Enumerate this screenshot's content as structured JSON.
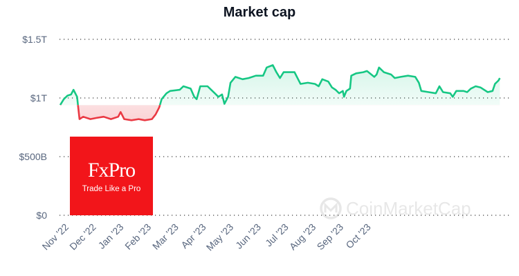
{
  "chart_data": {
    "type": "area",
    "title": "Market cap",
    "xlabel": "",
    "ylabel": "",
    "ylim": [
      0,
      1.5
    ],
    "y_unit": "trillion USD",
    "yticks": [
      {
        "value": 0,
        "label": "$0"
      },
      {
        "value": 0.5,
        "label": "$500B"
      },
      {
        "value": 1,
        "label": "$1T"
      },
      {
        "value": 1.5,
        "label": "$1.5T"
      }
    ],
    "xlim_days": [
      0,
      365
    ],
    "xtick_labels": [
      "Nov '22",
      "Dec '22",
      "Jan '23",
      "Feb '23",
      "Mar '23",
      "Apr '23",
      "May '23",
      "Jun '23",
      "Jul '23",
      "Aug '23",
      "Sep '23",
      "Oct '23"
    ],
    "grid": "horizontal dotted",
    "baseline": 0.94,
    "colors": {
      "above": "#16c784",
      "below": "#ea3943"
    },
    "series": [
      {
        "name": "Market cap",
        "x": [
          0,
          3,
          6,
          9,
          11,
          14,
          15,
          16,
          19,
          25,
          30,
          36,
          42,
          48,
          50,
          53,
          59,
          65,
          70,
          76,
          79,
          82,
          84,
          88,
          91,
          99,
          102,
          108,
          111,
          113,
          116,
          122,
          128,
          131,
          134,
          136,
          139,
          141,
          145,
          151,
          156,
          162,
          168,
          171,
          176,
          179,
          182,
          185,
          194,
          197,
          199,
          205,
          211,
          214,
          217,
          222,
          225,
          228,
          231,
          234,
          235,
          237,
          240,
          241,
          245,
          251,
          254,
          260,
          262,
          264,
          268,
          274,
          277,
          282,
          288,
          294,
          297,
          299,
          305,
          311,
          314,
          317,
          323,
          325,
          328,
          334,
          337,
          340,
          344,
          348,
          354,
          358,
          360,
          363,
          364
        ],
        "values": [
          0.94,
          0.99,
          1.02,
          1.03,
          1.07,
          1.01,
          0.91,
          0.82,
          0.84,
          0.82,
          0.83,
          0.84,
          0.82,
          0.84,
          0.88,
          0.82,
          0.81,
          0.82,
          0.81,
          0.82,
          0.86,
          0.92,
          0.99,
          1.04,
          1.06,
          1.07,
          1.1,
          1.08,
          1.01,
          0.99,
          1.1,
          1.1,
          1.04,
          1.01,
          1.03,
          0.95,
          1.01,
          1.13,
          1.18,
          1.16,
          1.17,
          1.19,
          1.19,
          1.26,
          1.28,
          1.22,
          1.17,
          1.22,
          1.22,
          1.16,
          1.12,
          1.13,
          1.12,
          1.1,
          1.16,
          1.14,
          1.09,
          1.07,
          1.04,
          1.06,
          1.01,
          1.06,
          1.08,
          1.19,
          1.21,
          1.22,
          1.23,
          1.18,
          1.2,
          1.26,
          1.22,
          1.2,
          1.17,
          1.18,
          1.19,
          1.18,
          1.13,
          1.06,
          1.05,
          1.04,
          1.1,
          1.05,
          1.04,
          1.01,
          1.06,
          1.06,
          1.05,
          1.08,
          1.1,
          1.09,
          1.05,
          1.06,
          1.12,
          1.15,
          1.17
        ]
      }
    ],
    "watermark": "CoinMarketCap"
  },
  "ad": {
    "logo": "FxPro",
    "tagline": "Trade Like a Pro"
  }
}
